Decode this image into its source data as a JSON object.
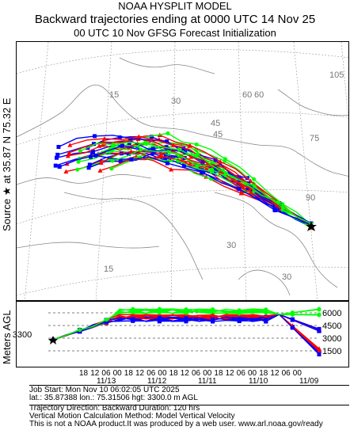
{
  "header": {
    "line1": "NOAA HYSPLIT MODEL",
    "line2": "Backward trajectories ending at 0000 UTC 14 Nov 25",
    "line3": "00 UTC 10 Nov    GFSG  Forecast Initialization"
  },
  "side": {
    "source_label": "Source ★ at   35.87 N   75.32 E",
    "meters_label": "Meters AGL"
  },
  "map": {
    "grid_labels": [
      "60",
      "45",
      "30",
      "15",
      "30",
      "45",
      "60",
      "75",
      "90",
      "105",
      "30",
      "15"
    ],
    "source_marker": "source-star",
    "colors": {
      "red": "#ff0000",
      "blue": "#0000ff",
      "green": "#00ff00",
      "grid": "#999999",
      "coast": "#888888"
    }
  },
  "altitude": {
    "start_value": "3300",
    "right_labels": [
      "6000",
      "4500",
      "3000",
      "1500"
    ],
    "hour_ticks": [
      "18",
      "12",
      "06",
      "00",
      "18",
      "12",
      "06",
      "00",
      "18",
      "12",
      "06",
      "00",
      "18",
      "12",
      "06",
      "00",
      "18",
      "12",
      "06",
      "00"
    ],
    "date_ticks": [
      "11/13",
      "11/12",
      "11/11",
      "11/10",
      "11/09"
    ]
  },
  "info": {
    "line1": "Job Start: Mon Nov 10 06:02:05 UTC 2025",
    "line2": "lat.: 35.87388   lon.: 75.31506   hgt: 3300.0 m AGL",
    "line3": "Trajectory Direction: Backward        Duration: 120 hrs",
    "line4": "Vertical Motion Calculation Method: Model Vertical Velocity",
    "line5": "This is not a NOAA product.It was produced by a web user. www.arl.noaa.gov/ready"
  }
}
